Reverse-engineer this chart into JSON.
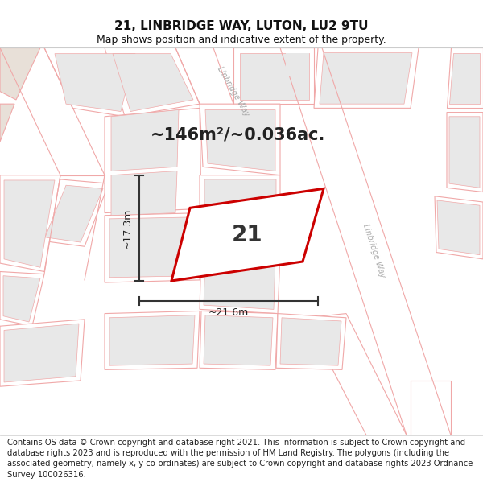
{
  "title": "21, LINBRIDGE WAY, LUTON, LU2 9TU",
  "subtitle": "Map shows position and indicative extent of the property.",
  "area_text": "~146m²/~0.036ac.",
  "width_label": "~21.6m",
  "height_label": "~17.3m",
  "number_label": "21",
  "map_bg": "#ffffff",
  "block_fill": "#e8e8e8",
  "block_edge": "#f0a8a8",
  "road_stripe": "#f5c0c0",
  "red_outline": "#cc0000",
  "dim_color": "#333333",
  "text_color": "#222222",
  "road_label_color": "#aaaaaa",
  "beige_fill": "#e8e0d8",
  "footer_text": "Contains OS data © Crown copyright and database right 2021. This information is subject to Crown copyright and database rights 2023 and is reproduced with the permission of HM Land Registry. The polygons (including the associated geometry, namely x, y co-ordinates) are subject to Crown copyright and database rights 2023 Ordnance Survey 100026316.",
  "title_fontsize": 11,
  "subtitle_fontsize": 9,
  "footer_fontsize": 7.2,
  "area_fontsize": 15,
  "dim_fontsize": 9,
  "num_fontsize": 20,
  "road_label_fontsize": 7
}
